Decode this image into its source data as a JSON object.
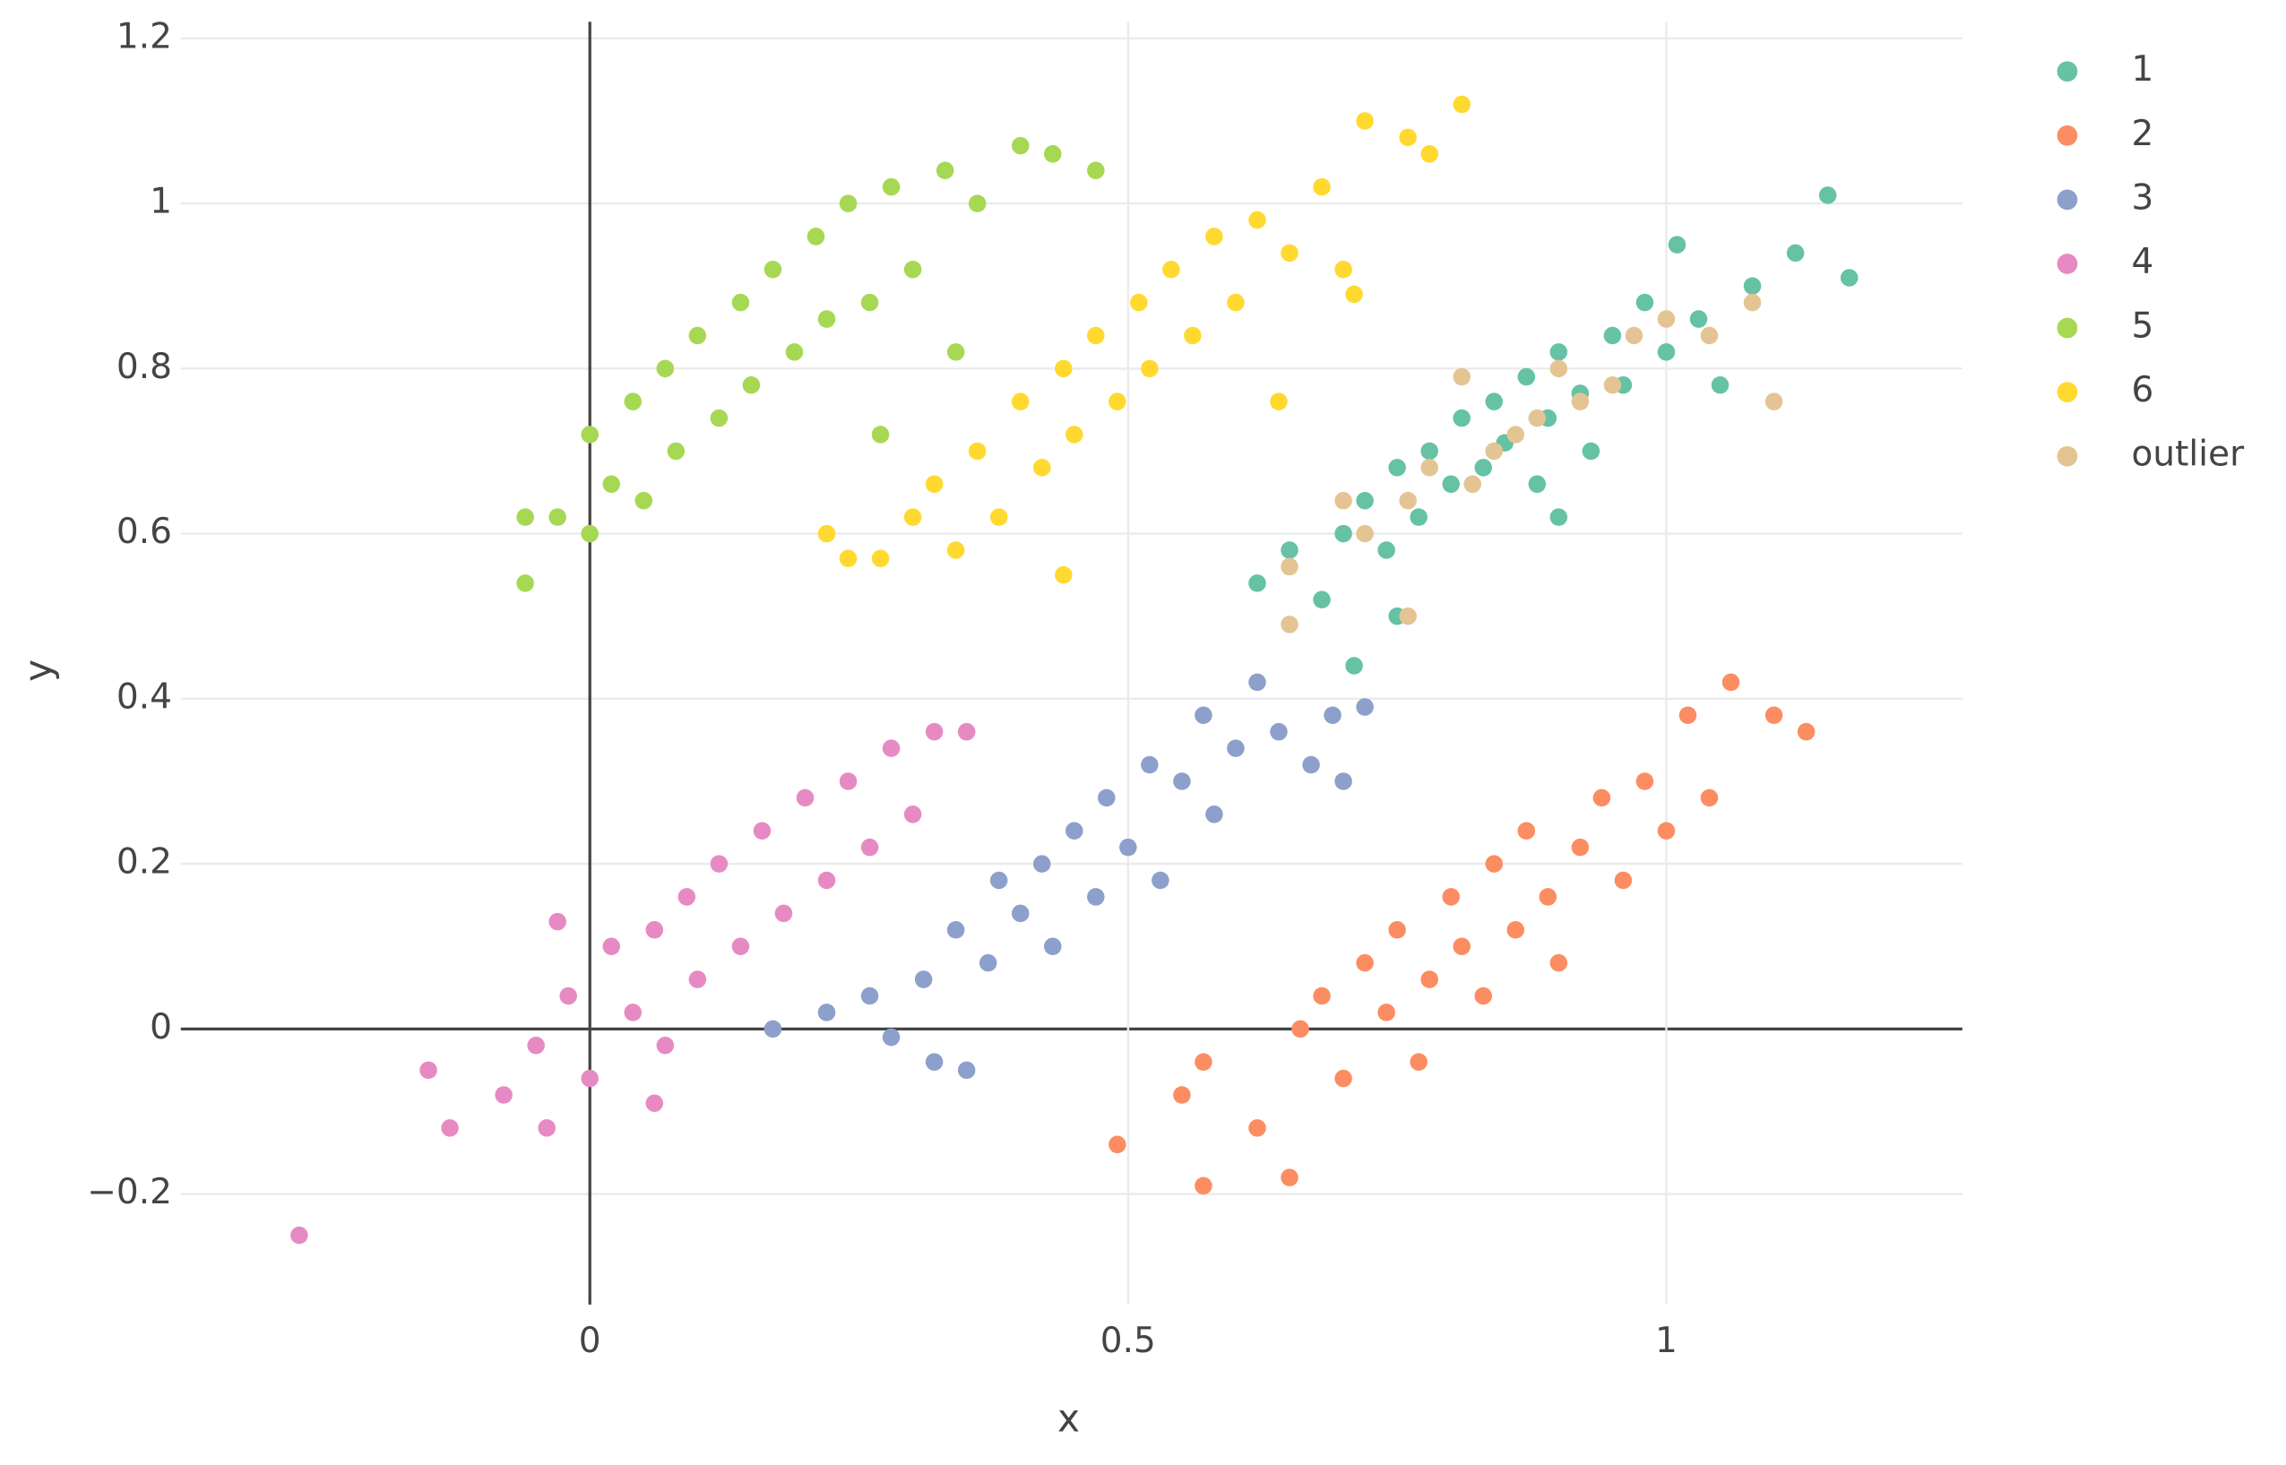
{
  "chart_data": {
    "type": "scatter",
    "x_label": "x",
    "y_label": "y",
    "xlim": [
      -0.38,
      1.275
    ],
    "ylim": [
      -0.334,
      1.22
    ],
    "xticks": [
      0,
      0.5,
      1
    ],
    "yticks": [
      {
        "value": -0.2,
        "label": "−0.2"
      },
      0,
      0.2,
      0.4,
      0.6,
      0.8,
      1,
      1.2
    ],
    "grid": true,
    "legend": "right",
    "series": [
      {
        "name": "1",
        "color": "#66c2a5",
        "x": [
          0.62,
          0.65,
          0.68,
          0.7,
          0.72,
          0.74,
          0.75,
          0.77,
          0.78,
          0.8,
          0.81,
          0.83,
          0.84,
          0.85,
          0.87,
          0.88,
          0.89,
          0.9,
          0.92,
          0.93,
          0.95,
          0.96,
          0.98,
          1.0,
          1.01,
          1.03,
          1.05,
          1.08,
          1.12,
          1.15,
          1.17,
          0.71,
          0.75,
          0.9
        ],
        "y": [
          0.54,
          0.58,
          0.52,
          0.6,
          0.64,
          0.58,
          0.68,
          0.62,
          0.7,
          0.66,
          0.74,
          0.68,
          0.76,
          0.71,
          0.79,
          0.66,
          0.74,
          0.82,
          0.77,
          0.7,
          0.84,
          0.78,
          0.88,
          0.82,
          0.95,
          0.86,
          0.78,
          0.9,
          0.94,
          1.01,
          0.91,
          0.44,
          0.5,
          0.62
        ]
      },
      {
        "name": "2",
        "color": "#fc8d62",
        "x": [
          0.55,
          0.57,
          0.62,
          0.65,
          0.66,
          0.68,
          0.7,
          0.72,
          0.74,
          0.75,
          0.77,
          0.78,
          0.8,
          0.81,
          0.83,
          0.84,
          0.86,
          0.87,
          0.89,
          0.9,
          0.92,
          0.94,
          0.96,
          0.98,
          1.0,
          1.02,
          1.04,
          1.06,
          1.1,
          1.13,
          0.49,
          0.57
        ],
        "y": [
          -0.08,
          -0.04,
          -0.12,
          -0.18,
          0.0,
          0.04,
          -0.06,
          0.08,
          0.02,
          0.12,
          -0.04,
          0.06,
          0.16,
          0.1,
          0.04,
          0.2,
          0.12,
          0.24,
          0.16,
          0.08,
          0.22,
          0.28,
          0.18,
          0.3,
          0.24,
          0.38,
          0.28,
          0.42,
          0.38,
          0.36,
          -0.14,
          -0.19
        ]
      },
      {
        "name": "3",
        "color": "#8da0cb",
        "x": [
          0.17,
          0.22,
          0.26,
          0.28,
          0.31,
          0.32,
          0.34,
          0.35,
          0.37,
          0.38,
          0.4,
          0.42,
          0.43,
          0.45,
          0.47,
          0.48,
          0.5,
          0.52,
          0.53,
          0.55,
          0.57,
          0.58,
          0.6,
          0.62,
          0.64,
          0.67,
          0.69,
          0.7,
          0.72
        ],
        "y": [
          0.0,
          0.02,
          0.04,
          -0.01,
          0.06,
          -0.04,
          0.12,
          -0.05,
          0.08,
          0.18,
          0.14,
          0.2,
          0.1,
          0.24,
          0.16,
          0.28,
          0.22,
          0.32,
          0.18,
          0.3,
          0.38,
          0.26,
          0.34,
          0.42,
          0.36,
          0.32,
          0.38,
          0.3,
          0.39
        ]
      },
      {
        "name": "4",
        "color": "#e78ac3",
        "x": [
          -0.27,
          -0.15,
          -0.13,
          -0.08,
          -0.05,
          -0.04,
          -0.02,
          0.0,
          0.02,
          0.04,
          0.06,
          0.07,
          0.09,
          0.1,
          0.12,
          0.14,
          0.16,
          0.18,
          0.2,
          0.22,
          0.24,
          0.26,
          0.28,
          0.3,
          0.32,
          0.35,
          0.06,
          -0.03
        ],
        "y": [
          -0.25,
          -0.05,
          -0.12,
          -0.08,
          -0.02,
          -0.12,
          0.04,
          -0.06,
          0.1,
          0.02,
          0.12,
          -0.02,
          0.16,
          0.06,
          0.2,
          0.1,
          0.24,
          0.14,
          0.28,
          0.18,
          0.3,
          0.22,
          0.34,
          0.26,
          0.36,
          0.36,
          -0.09,
          0.13
        ]
      },
      {
        "name": "5",
        "color": "#a6d854",
        "x": [
          -0.06,
          -0.06,
          -0.03,
          0.0,
          0.0,
          0.02,
          0.04,
          0.05,
          0.07,
          0.08,
          0.1,
          0.12,
          0.14,
          0.15,
          0.17,
          0.19,
          0.21,
          0.22,
          0.24,
          0.26,
          0.28,
          0.3,
          0.33,
          0.36,
          0.4,
          0.43,
          0.47,
          0.27,
          0.34
        ],
        "y": [
          0.54,
          0.62,
          0.62,
          0.6,
          0.72,
          0.66,
          0.76,
          0.64,
          0.8,
          0.7,
          0.84,
          0.74,
          0.88,
          0.78,
          0.92,
          0.82,
          0.96,
          0.86,
          1.0,
          0.88,
          1.02,
          0.92,
          1.04,
          1.0,
          1.07,
          1.06,
          1.04,
          0.72,
          0.82
        ]
      },
      {
        "name": "6",
        "color": "#ffd92f",
        "x": [
          0.22,
          0.24,
          0.27,
          0.3,
          0.32,
          0.34,
          0.36,
          0.38,
          0.4,
          0.42,
          0.44,
          0.45,
          0.47,
          0.49,
          0.51,
          0.52,
          0.54,
          0.56,
          0.58,
          0.6,
          0.62,
          0.65,
          0.68,
          0.7,
          0.72,
          0.76,
          0.78,
          0.81,
          0.44,
          0.64,
          0.71
        ],
        "y": [
          0.6,
          0.57,
          0.57,
          0.62,
          0.66,
          0.58,
          0.7,
          0.62,
          0.76,
          0.68,
          0.8,
          0.72,
          0.84,
          0.76,
          0.88,
          0.8,
          0.92,
          0.84,
          0.96,
          0.88,
          0.98,
          0.94,
          1.02,
          0.92,
          1.1,
          1.08,
          1.06,
          1.12,
          0.55,
          0.76,
          0.89
        ]
      },
      {
        "name": "outlier",
        "color": "#e5c494",
        "x": [
          0.65,
          0.65,
          0.7,
          0.72,
          0.76,
          0.76,
          0.78,
          0.81,
          0.82,
          0.84,
          0.86,
          0.88,
          0.9,
          0.92,
          0.95,
          0.97,
          1.0,
          1.04,
          1.08,
          1.1
        ],
        "y": [
          0.49,
          0.56,
          0.64,
          0.6,
          0.5,
          0.64,
          0.68,
          0.79,
          0.66,
          0.7,
          0.72,
          0.74,
          0.8,
          0.76,
          0.78,
          0.84,
          0.86,
          0.84,
          0.88,
          0.76
        ]
      }
    ]
  }
}
